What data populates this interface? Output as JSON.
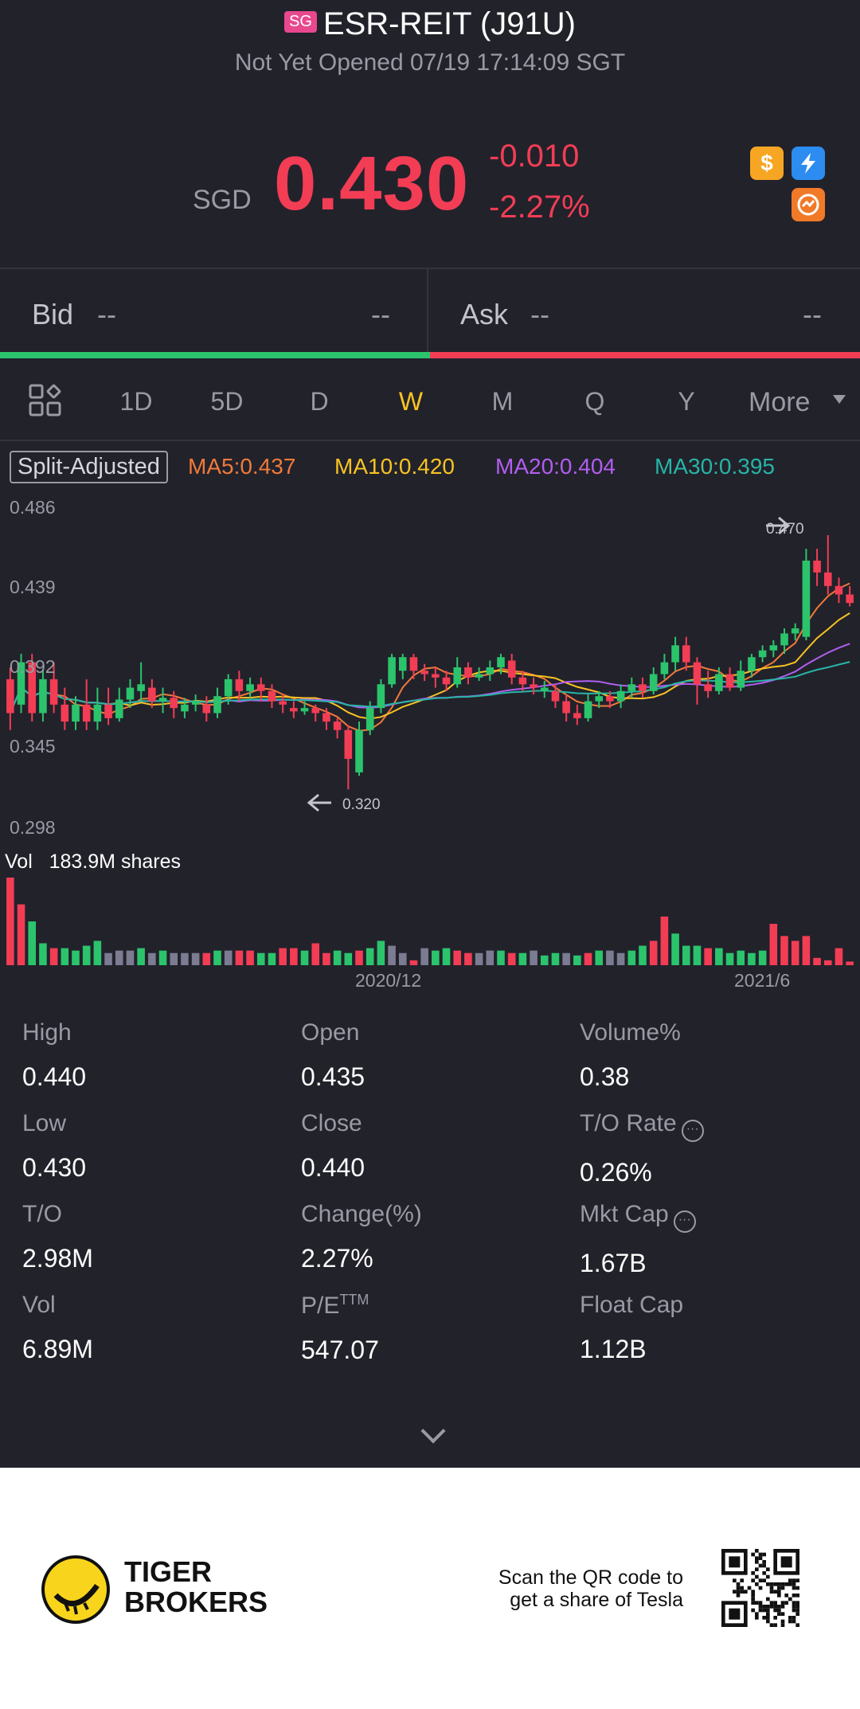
{
  "header": {
    "market_badge": "SG",
    "title": "ESR-REIT (J91U)",
    "status": "Not Yet Opened 07/19 17:14:09 SGT",
    "currency": "SGD",
    "price": "0.430",
    "change": "-0.010",
    "change_pct": "-2.27%",
    "icons": [
      "dollar-icon",
      "flash-icon",
      "chart-badge-icon"
    ],
    "price_color": "#f23d55"
  },
  "bidask": {
    "bid_label": "Bid",
    "bid_price": "--",
    "bid_size": "--",
    "ask_label": "Ask",
    "ask_price": "--",
    "ask_size": "--"
  },
  "tabs": {
    "items": [
      "1D",
      "5D",
      "D",
      "W",
      "M",
      "Q",
      "Y"
    ],
    "active": "W",
    "more": "More"
  },
  "ma": {
    "split": "Split-Adjusted",
    "ma5": "MA5:0.437",
    "ma10": "MA10:0.420",
    "ma20": "MA20:0.404",
    "ma30": "MA30:0.395",
    "colors": {
      "ma5": "#f07a3a",
      "ma10": "#f8c322",
      "ma20": "#b15ef0",
      "ma30": "#26b5a6"
    }
  },
  "chart_data": {
    "type": "candlestick",
    "y_ticks": [
      "0.486",
      "0.439",
      "0.392",
      "0.345",
      "0.298"
    ],
    "ylim": [
      0.298,
      0.486
    ],
    "high_annotation": "0.470",
    "low_annotation": "0.320",
    "vol_label": "Vol",
    "vol_value": "183.9M shares",
    "x_labels": [
      "2020/12",
      "2021/6"
    ],
    "candles": [
      [
        0.385,
        0.365,
        0.392,
        0.355
      ],
      [
        0.37,
        0.395,
        0.4,
        0.365
      ],
      [
        0.395,
        0.365,
        0.4,
        0.36
      ],
      [
        0.365,
        0.385,
        0.39,
        0.36
      ],
      [
        0.385,
        0.37,
        0.395,
        0.365
      ],
      [
        0.37,
        0.36,
        0.38,
        0.355
      ],
      [
        0.36,
        0.37,
        0.375,
        0.355
      ],
      [
        0.37,
        0.36,
        0.385,
        0.355
      ],
      [
        0.36,
        0.37,
        0.38,
        0.355
      ],
      [
        0.37,
        0.362,
        0.38,
        0.358
      ],
      [
        0.362,
        0.373,
        0.38,
        0.36
      ],
      [
        0.373,
        0.38,
        0.385,
        0.368
      ],
      [
        0.378,
        0.382,
        0.395,
        0.372
      ],
      [
        0.38,
        0.372,
        0.385,
        0.368
      ],
      [
        0.372,
        0.374,
        0.38,
        0.365
      ],
      [
        0.374,
        0.368,
        0.378,
        0.362
      ],
      [
        0.366,
        0.37,
        0.374,
        0.362
      ],
      [
        0.37,
        0.372,
        0.376,
        0.366
      ],
      [
        0.37,
        0.365,
        0.375,
        0.36
      ],
      [
        0.365,
        0.375,
        0.38,
        0.362
      ],
      [
        0.375,
        0.385,
        0.388,
        0.37
      ],
      [
        0.385,
        0.378,
        0.39,
        0.372
      ],
      [
        0.378,
        0.382,
        0.386,
        0.374
      ],
      [
        0.382,
        0.378,
        0.386,
        0.372
      ],
      [
        0.378,
        0.372,
        0.382,
        0.368
      ],
      [
        0.372,
        0.37,
        0.376,
        0.365
      ],
      [
        0.368,
        0.366,
        0.372,
        0.362
      ],
      [
        0.366,
        0.368,
        0.372,
        0.364
      ],
      [
        0.368,
        0.365,
        0.37,
        0.36
      ],
      [
        0.365,
        0.36,
        0.368,
        0.355
      ],
      [
        0.36,
        0.355,
        0.362,
        0.35
      ],
      [
        0.355,
        0.338,
        0.358,
        0.32
      ],
      [
        0.33,
        0.355,
        0.36,
        0.328
      ],
      [
        0.355,
        0.368,
        0.372,
        0.352
      ],
      [
        0.368,
        0.382,
        0.385,
        0.365
      ],
      [
        0.382,
        0.398,
        0.4,
        0.38
      ],
      [
        0.39,
        0.398,
        0.4,
        0.385
      ],
      [
        0.398,
        0.39,
        0.4,
        0.385
      ],
      [
        0.39,
        0.388,
        0.394,
        0.384
      ],
      [
        0.388,
        0.386,
        0.392,
        0.38
      ],
      [
        0.386,
        0.382,
        0.39,
        0.378
      ],
      [
        0.382,
        0.392,
        0.398,
        0.38
      ],
      [
        0.392,
        0.386,
        0.395,
        0.382
      ],
      [
        0.386,
        0.388,
        0.392,
        0.384
      ],
      [
        0.388,
        0.392,
        0.396,
        0.384
      ],
      [
        0.392,
        0.398,
        0.4,
        0.388
      ],
      [
        0.396,
        0.386,
        0.4,
        0.382
      ],
      [
        0.386,
        0.382,
        0.39,
        0.378
      ],
      [
        0.382,
        0.38,
        0.386,
        0.376
      ],
      [
        0.378,
        0.38,
        0.384,
        0.374
      ],
      [
        0.378,
        0.372,
        0.382,
        0.368
      ],
      [
        0.372,
        0.365,
        0.376,
        0.36
      ],
      [
        0.365,
        0.362,
        0.37,
        0.358
      ],
      [
        0.362,
        0.372,
        0.376,
        0.36
      ],
      [
        0.372,
        0.375,
        0.378,
        0.368
      ],
      [
        0.375,
        0.372,
        0.378,
        0.368
      ],
      [
        0.372,
        0.378,
        0.382,
        0.368
      ],
      [
        0.378,
        0.382,
        0.386,
        0.374
      ],
      [
        0.382,
        0.378,
        0.386,
        0.374
      ],
      [
        0.378,
        0.388,
        0.392,
        0.376
      ],
      [
        0.388,
        0.395,
        0.4,
        0.385
      ],
      [
        0.395,
        0.405,
        0.41,
        0.39
      ],
      [
        0.405,
        0.395,
        0.41,
        0.39
      ],
      [
        0.395,
        0.382,
        0.398,
        0.37
      ],
      [
        0.382,
        0.378,
        0.39,
        0.374
      ],
      [
        0.378,
        0.388,
        0.392,
        0.376
      ],
      [
        0.388,
        0.38,
        0.392,
        0.378
      ],
      [
        0.38,
        0.39,
        0.396,
        0.378
      ],
      [
        0.39,
        0.398,
        0.4,
        0.386
      ],
      [
        0.398,
        0.402,
        0.405,
        0.395
      ],
      [
        0.402,
        0.405,
        0.408,
        0.398
      ],
      [
        0.405,
        0.412,
        0.415,
        0.4
      ],
      [
        0.412,
        0.415,
        0.418,
        0.408
      ],
      [
        0.41,
        0.455,
        0.462,
        0.408
      ],
      [
        0.455,
        0.448,
        0.462,
        0.44
      ],
      [
        0.448,
        0.44,
        0.47,
        0.435
      ],
      [
        0.44,
        0.435,
        0.445,
        0.43
      ],
      [
        0.435,
        0.43,
        0.44,
        0.428
      ]
    ],
    "volumes": [
      72,
      50,
      36,
      18,
      14,
      14,
      12,
      16,
      20,
      10,
      12,
      12,
      14,
      10,
      12,
      10,
      10,
      10,
      10,
      12,
      12,
      12,
      12,
      10,
      10,
      14,
      14,
      12,
      18,
      10,
      12,
      10,
      12,
      14,
      20,
      16,
      10,
      4,
      14,
      12,
      14,
      12,
      10,
      10,
      12,
      12,
      10,
      10,
      12,
      8,
      10,
      10,
      8,
      10,
      12,
      12,
      10,
      12,
      16,
      20,
      40,
      26,
      16,
      16,
      14,
      14,
      10,
      12,
      10,
      12,
      34,
      24,
      20,
      24,
      6,
      4,
      14,
      3
    ],
    "volume_colors": [
      "r",
      "r",
      "g",
      "g",
      "r",
      "g",
      "g",
      "g",
      "g",
      "n",
      "n",
      "n",
      "g",
      "n",
      "g",
      "n",
      "n",
      "n",
      "r",
      "g",
      "n",
      "r",
      "r",
      "g",
      "g",
      "r",
      "r",
      "g",
      "r",
      "r",
      "g",
      "g",
      "r",
      "g",
      "g",
      "n",
      "n",
      "r",
      "n",
      "g",
      "g",
      "r",
      "r",
      "n",
      "n",
      "g",
      "r",
      "g",
      "n",
      "g",
      "g",
      "n",
      "g",
      "r",
      "g",
      "n",
      "n",
      "g",
      "g",
      "r",
      "r",
      "g",
      "g",
      "g",
      "r",
      "g",
      "g",
      "g",
      "g",
      "g",
      "r",
      "r",
      "r",
      "r",
      "r",
      "r",
      "r",
      "r"
    ],
    "colors": {
      "up": "#2bc46c",
      "down": "#f23d55",
      "neutral": "#7b7b92"
    }
  },
  "stats": [
    {
      "label": "High",
      "value": "0.440"
    },
    {
      "label": "Open",
      "value": "0.435"
    },
    {
      "label": "Volume%",
      "value": "0.38"
    },
    {
      "label": "Low",
      "value": "0.430"
    },
    {
      "label": "Close",
      "value": "0.440"
    },
    {
      "label": "T/O Rate",
      "value": "0.26%"
    },
    {
      "label": "T/O",
      "value": "2.98M"
    },
    {
      "label": "Change(%)",
      "value": "2.27%"
    },
    {
      "label": "Mkt Cap",
      "value": "1.67B"
    },
    {
      "label": "Vol",
      "value": "6.89M"
    },
    {
      "label": "P/E",
      "label_sup": "TTM",
      "value": "547.07"
    },
    {
      "label": "Float Cap",
      "value": "1.12B"
    }
  ],
  "footer": {
    "brand_line1": "TIGER",
    "brand_line2": "BROKERS",
    "qr_line1": "Scan the QR code to",
    "qr_line2": "get a share of Tesla"
  }
}
